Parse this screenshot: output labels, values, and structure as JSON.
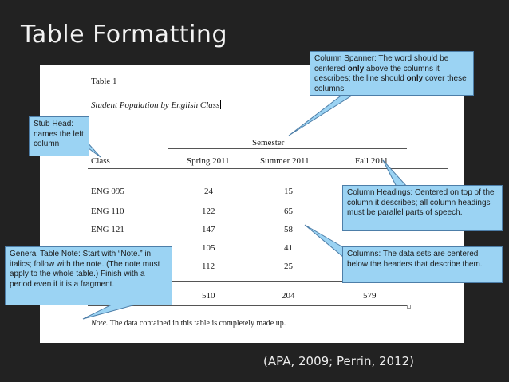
{
  "slide": {
    "title": "Table Formatting",
    "citation": "(APA, 2009; Perrin, 2012)"
  },
  "document": {
    "table_number": "Table 1",
    "table_title": "Student Population by English Class",
    "spanner": "Semester",
    "columns": [
      "Class",
      "Spring 2011",
      "Summer 2011",
      "Fall 2011"
    ],
    "rows": [
      [
        "ENG 095",
        "24",
        "15",
        ""
      ],
      [
        "ENG 110",
        "122",
        "65",
        ""
      ],
      [
        "ENG 121",
        "147",
        "58",
        ""
      ],
      [
        "",
        "105",
        "41",
        ""
      ],
      [
        "",
        "112",
        "25",
        ""
      ]
    ],
    "totals": [
      "",
      "510",
      "204",
      "579"
    ],
    "note_label": "Note.",
    "note_text": " The data contained in this table is completely made up."
  },
  "callouts": {
    "spanner": {
      "t1": "Column Spanner:  The word should be centered ",
      "b1": "only",
      "t2": " above the columns it describes; the line should ",
      "b2": "only",
      "t3": " cover these columns"
    },
    "stub_head": "Stub Head: names the left column",
    "headings": "Column Headings:  Centered on top of the column it describes; all column headings must be parallel parts of speech.",
    "columns": "Columns:  The data sets are centered below the headers that describe them.",
    "general_note": "General Table Note:  Start with “Note.” in italics; follow with the note. (The note must apply to the whole table.) Finish with a period even if it is a fragment."
  },
  "colors": {
    "callout_fill": "#9bd3f3",
    "callout_border": "#4d7ea8",
    "background": "#222222",
    "paper": "#ffffff"
  }
}
